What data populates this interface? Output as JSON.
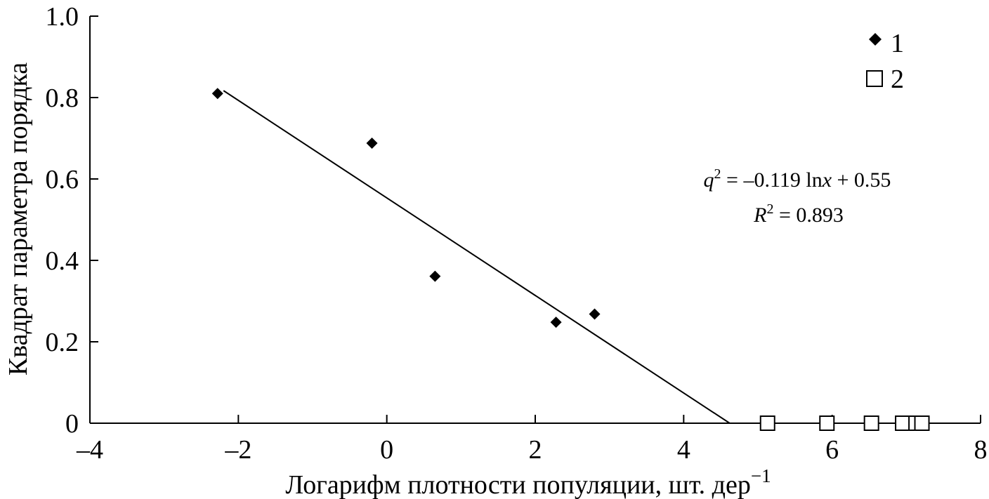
{
  "chart_data": {
    "type": "scatter",
    "xlabel": "Логарифм плотности популяции, шт. дер",
    "xlabel_sup": "−1",
    "ylabel": "Квадрат параметра порядка",
    "xlim": [
      -4,
      8
    ],
    "ylim": [
      0,
      1.0
    ],
    "xticks": [
      -4,
      -2,
      0,
      2,
      4,
      6,
      8
    ],
    "xtick_labels": [
      "–4",
      "–2",
      "0",
      "2",
      "4",
      "6",
      "8"
    ],
    "yticks": [
      0,
      0.2,
      0.4,
      0.6,
      0.8,
      1.0
    ],
    "ytick_labels": [
      "0",
      "0.2",
      "0.4",
      "0.6",
      "0.8",
      "1.0"
    ],
    "grid": false,
    "legend_position": "top-right",
    "series": [
      {
        "name": "1",
        "marker": "filled-diamond",
        "color": "#000000",
        "x": [
          -2.28,
          -0.2,
          0.65,
          2.28,
          2.8
        ],
        "y": [
          0.81,
          0.688,
          0.361,
          0.248,
          0.268
        ]
      },
      {
        "name": "2",
        "marker": "open-square",
        "color": "#000000",
        "x": [
          5.13,
          5.93,
          6.53,
          6.95,
          7.13,
          7.21
        ],
        "y": [
          0,
          0,
          0,
          0,
          0,
          0
        ]
      }
    ],
    "trendline": {
      "x": [
        -2.2,
        4.62
      ],
      "y": [
        0.817,
        0
      ]
    },
    "annotation": {
      "equation_q": "q",
      "equation_q_sup": "2",
      "equation_rest": " = –0.119 ln",
      "equation_x": "x",
      "equation_tail": " + 0.55",
      "r2_r": "R",
      "r2_sup": "2",
      "r2_rest": " = 0.893"
    }
  }
}
